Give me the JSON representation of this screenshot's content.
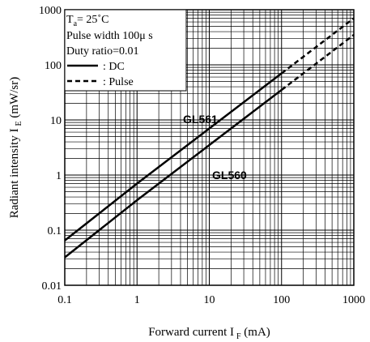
{
  "chart_data": {
    "type": "line",
    "scale": {
      "x": "log",
      "y": "log"
    },
    "xlim": [
      0.1,
      1000
    ],
    "ylim": [
      0.01,
      1000
    ],
    "grid": "on",
    "legend": "top-left",
    "x_ticks": [
      "0.1",
      "1",
      "10",
      "100",
      "1000"
    ],
    "y_ticks": [
      "1000",
      "100",
      "10",
      "1",
      "0.1",
      "0.01"
    ],
    "xlabel": {
      "main": "Forward current I",
      "sub": "F",
      "unit": " (mA)"
    },
    "ylabel": {
      "main": "Radiant intensity I",
      "sub": "E",
      "unit": " (mW/sr)"
    },
    "conditions": {
      "ta": {
        "prefix": "T",
        "sub": "a",
        "value": "= 25˚C"
      },
      "pulse_width": "Pulse width 100μ s",
      "duty_ratio": "Duty ratio=0.01"
    },
    "legend_entries": [
      {
        "style": "solid",
        "label": ": DC"
      },
      {
        "style": "dashed",
        "label": ":  Pulse"
      }
    ],
    "series": [
      {
        "name": "GL561",
        "style_dc_until": 100,
        "x": [
          0.1,
          1,
          10,
          100,
          1000
        ],
        "values": [
          0.065,
          0.7,
          7,
          70,
          700
        ]
      },
      {
        "name": "GL560",
        "style_dc_until": 100,
        "x": [
          0.1,
          1,
          10,
          100,
          1000
        ],
        "values": [
          0.032,
          0.35,
          3.5,
          35,
          350
        ]
      }
    ]
  }
}
